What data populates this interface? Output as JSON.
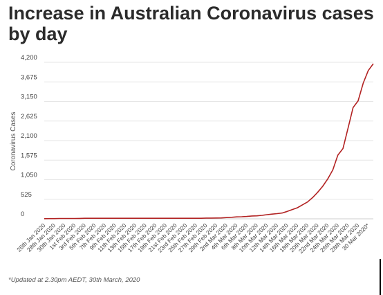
{
  "chart_data": {
    "type": "line",
    "title": "Increase in Australian Coronavirus cases by day",
    "ylabel": "Coronavirus Cases",
    "xlabel": "",
    "ylim": [
      0,
      4200
    ],
    "yticks": [
      "4,200",
      "3,675",
      "3,150",
      "2,625",
      "2,100",
      "1,575",
      "1,050",
      "525",
      "0"
    ],
    "ytick_values": [
      4200,
      3675,
      3150,
      2625,
      2100,
      1575,
      1050,
      525,
      0
    ],
    "x_tick_labels": [
      "26th Jan 2020",
      "28th Jan 2020",
      "30th Jan 2020",
      "1st Feb 2020",
      "3rd Feb 2020",
      "5th Feb 2020",
      "7th Feb 2020",
      "9th Feb 2020",
      "11th Feb 2020",
      "13th Feb 2020",
      "15th Feb 2020",
      "17th Feb 2020",
      "19th Feb 2020",
      "21st Feb 2020",
      "23rd Feb 2020",
      "25th Feb 2020",
      "27th Feb 2020",
      "29th Feb 2020",
      "2nd Mar 2020",
      "4th Mar 2020",
      "6th Mar 2020",
      "8th Mar 2020",
      "10th Mar 2020",
      "12th Mar 2020",
      "14th Mar 2020",
      "16th Mar 2020",
      "18th Mar 2020",
      "20th Mar 2020",
      "22nd Mar 2020",
      "24th Mar 2020",
      "26th Mar 2020",
      "28th Mar 2020",
      "30 Mar 2020*"
    ],
    "grid": true,
    "line_color": "#b22222",
    "series": [
      {
        "values": [
          4,
          5,
          5,
          9,
          9,
          9,
          10,
          12,
          14,
          15,
          15,
          15,
          15,
          15,
          15,
          15,
          15,
          15,
          15,
          15,
          15,
          15,
          15,
          15,
          15,
          15,
          15,
          15,
          15,
          15,
          15,
          15,
          21,
          21,
          23,
          25,
          33,
          41,
          52,
          55,
          63,
          76,
          80,
          92,
          112,
          127,
          140,
          156,
          198,
          249,
          298,
          375,
          452,
          568,
          709,
          873,
          1072,
          1312,
          1709,
          1887,
          2431,
          2985,
          3166,
          3642,
          3980,
          4163
        ]
      }
    ]
  },
  "footnote": "*Updated at 2.30pm AEDT, 30th March, 2020",
  "colors": {
    "grid": "#e6e6e6",
    "axis": "#cccccc",
    "line": "#b22222"
  }
}
